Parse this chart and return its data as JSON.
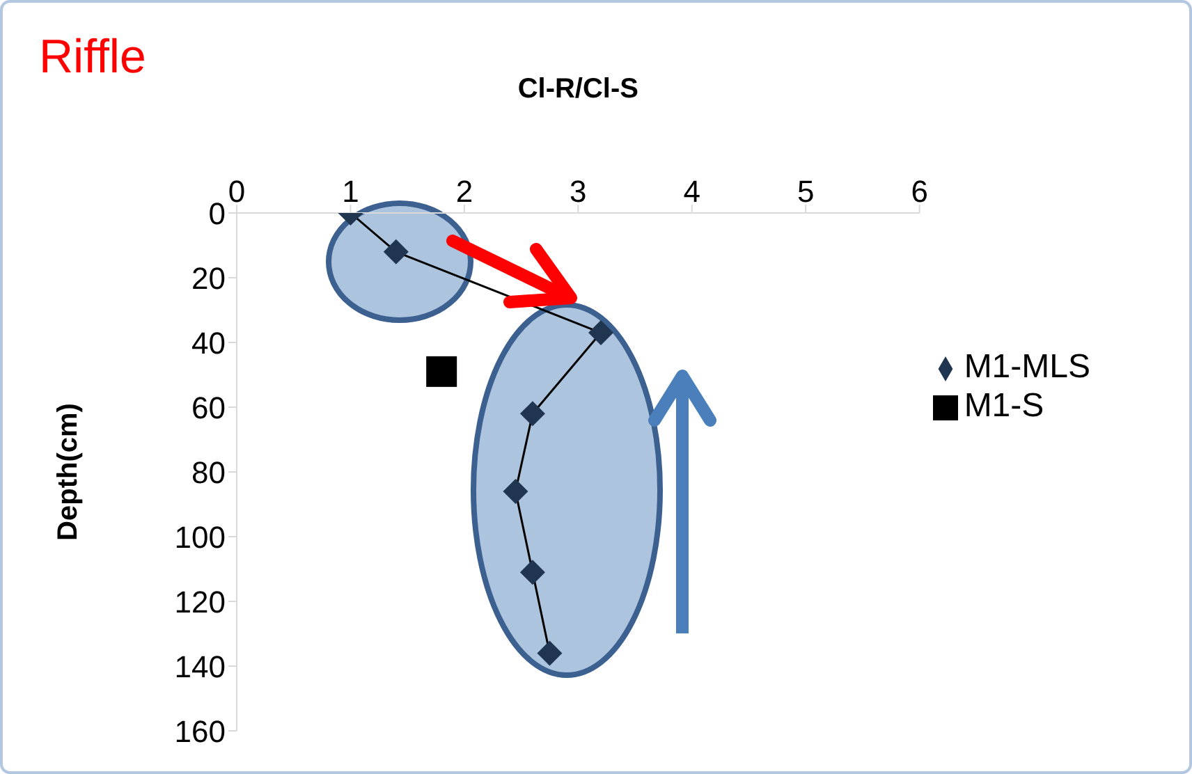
{
  "chart_data": {
    "type": "scatter",
    "title": "Riffle",
    "xlabel": "Cl-R/Cl-S",
    "ylabel": "Depth(cm)",
    "xlim": [
      0,
      6
    ],
    "xticks": [
      0,
      1,
      2,
      3,
      4,
      5,
      6
    ],
    "ylim": [
      160,
      0
    ],
    "yticks": [
      0,
      20,
      40,
      60,
      80,
      100,
      120,
      140,
      160
    ],
    "grid": false,
    "legend": "right",
    "series": [
      {
        "name": "M1-MLS",
        "type": "line",
        "marker": "diamond",
        "color": "#203550",
        "x": [
          1.0,
          1.4,
          3.2,
          2.6,
          2.45,
          2.6,
          2.75
        ],
        "values": [
          0,
          12,
          37,
          62,
          86,
          111,
          136
        ]
      },
      {
        "name": "M1-S",
        "type": "scatter",
        "marker": "square",
        "color": "#000000",
        "x": [
          1.8
        ],
        "values": [
          49
        ]
      }
    ]
  }
}
